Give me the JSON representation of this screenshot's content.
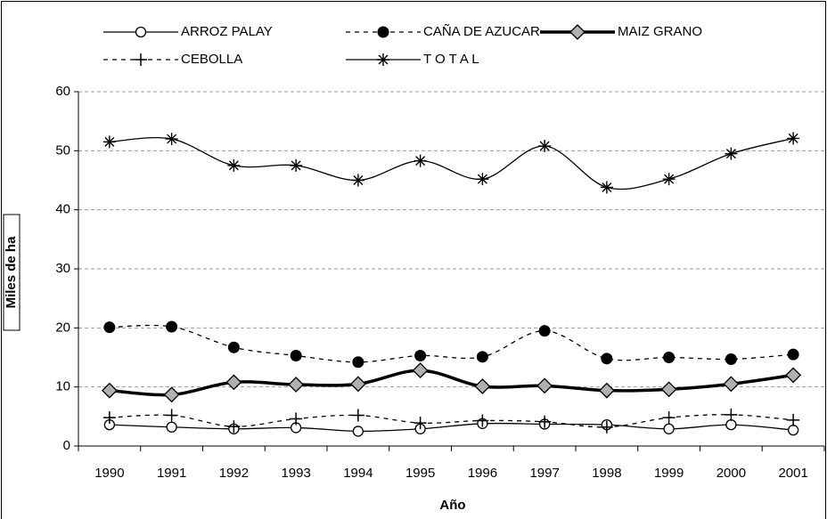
{
  "chart_data": {
    "type": "line",
    "x_label": "Año",
    "y_label": "Miles de ha",
    "categories": [
      "1990",
      "1991",
      "1992",
      "1993",
      "1994",
      "1995",
      "1996",
      "1997",
      "1998",
      "1999",
      "2000",
      "2001"
    ],
    "ylim": [
      0,
      60
    ],
    "yticks": [
      0,
      10,
      20,
      30,
      40,
      50,
      60
    ],
    "grid": true,
    "smooth": true,
    "series": [
      {
        "name": "ARROZ PALAY",
        "color": "#000000",
        "marker": "circle-open",
        "dash": "solid",
        "width": 1.3,
        "values": [
          3.6,
          3.2,
          2.9,
          3.1,
          2.5,
          2.9,
          3.8,
          3.7,
          3.6,
          2.9,
          3.6,
          2.7
        ]
      },
      {
        "name": "CAÑA DE AZUCAR",
        "color": "#000000",
        "marker": "circle-filled",
        "dash": "dashed",
        "width": 1.3,
        "values": [
          20.1,
          20.2,
          16.7,
          15.3,
          14.2,
          15.3,
          15.1,
          19.5,
          14.8,
          15.0,
          14.7,
          15.5
        ]
      },
      {
        "name": "MAIZ GRANO",
        "color": "#000000",
        "marker": "diamond",
        "dash": "solid",
        "width": 3.5,
        "values": [
          9.4,
          8.7,
          10.8,
          10.4,
          10.5,
          12.8,
          10.1,
          10.2,
          9.4,
          9.6,
          10.5,
          12.0
        ]
      },
      {
        "name": "CEBOLLA",
        "color": "#000000",
        "marker": "plus",
        "dash": "dashed",
        "width": 1.3,
        "values": [
          4.8,
          5.2,
          3.3,
          4.6,
          5.2,
          3.9,
          4.3,
          4.1,
          3.2,
          4.8,
          5.3,
          4.4
        ]
      },
      {
        "name": "T O T A L",
        "color": "#000000",
        "marker": "asterisk",
        "dash": "solid",
        "width": 1.3,
        "values": [
          51.5,
          52.0,
          47.5,
          47.5,
          45.0,
          48.3,
          45.2,
          50.8,
          43.8,
          45.2,
          49.5,
          52.1
        ]
      }
    ]
  }
}
